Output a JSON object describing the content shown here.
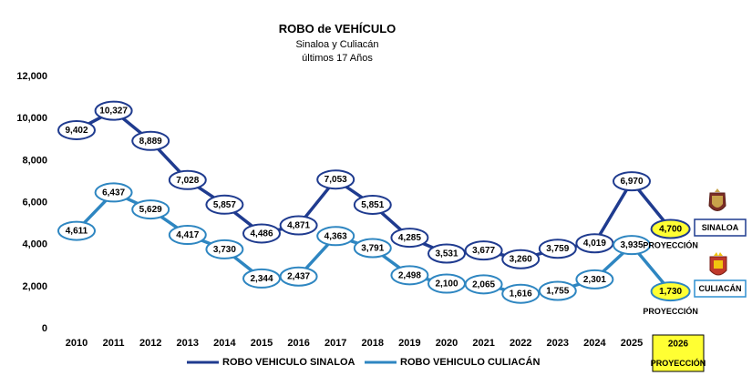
{
  "chart_data": {
    "type": "line",
    "title": "ROBO de VEHÍCULO",
    "subtitle_lines": [
      "Sinaloa y Culiacán",
      "últimos 17 Años"
    ],
    "categories": [
      "2010",
      "2011",
      "2012",
      "2013",
      "2014",
      "2015",
      "2016",
      "2017",
      "2018",
      "2019",
      "2020",
      "2021",
      "2022",
      "2023",
      "2024",
      "2025"
    ],
    "projection_category": "2026",
    "projection_category_label": "PROYECCIÓN",
    "ylim": [
      0,
      12000
    ],
    "yticks": [
      0,
      2000,
      4000,
      6000,
      8000,
      10000,
      12000
    ],
    "ytick_labels": [
      "0",
      "2,000",
      "4,000",
      "6,000",
      "8,000",
      "10,000",
      "12,000"
    ],
    "grid": false,
    "legend_position": "bottom",
    "series": [
      {
        "name": "ROBO VEHICULO SINALOA",
        "tag": "SINALOA",
        "color": "#1f3b8f",
        "values": [
          9402,
          10327,
          8889,
          7028,
          5857,
          4486,
          4871,
          7053,
          5851,
          4285,
          3531,
          3677,
          3260,
          3759,
          4019,
          6970
        ],
        "labels": [
          "9,402",
          "10,327",
          "8,889",
          "7,028",
          "5,857",
          "4,486",
          "4,871",
          "7,053",
          "5,851",
          "4,285",
          "3,531",
          "3,677",
          "3,260",
          "3,759",
          "4,019",
          "6,970"
        ],
        "projection": 4700,
        "projection_label": "4,700",
        "projection_note": "PROYECCIÓN"
      },
      {
        "name": "ROBO VEHICULO CULIACÁN",
        "tag": "CULIACÁN",
        "color": "#2e86c1",
        "values": [
          4611,
          6437,
          5629,
          4417,
          3730,
          2344,
          2437,
          4363,
          3791,
          2498,
          2100,
          2065,
          1616,
          1755,
          2301,
          3935
        ],
        "labels": [
          "4,611",
          "6,437",
          "5,629",
          "4,417",
          "3,730",
          "2,344",
          "2,437",
          "4,363",
          "3,791",
          "2,498",
          "2,100",
          "2,065",
          "1,616",
          "1,755",
          "2,301",
          "3,935"
        ],
        "projection": 1730,
        "projection_label": "1,730",
        "projection_note": "PROYECCIÓN"
      }
    ]
  },
  "colors": {
    "highlight": "#ffff33",
    "tag_border": "#2f8fd0"
  },
  "icons": [
    "sinaloa-crest-icon",
    "culiacan-crest-icon"
  ]
}
